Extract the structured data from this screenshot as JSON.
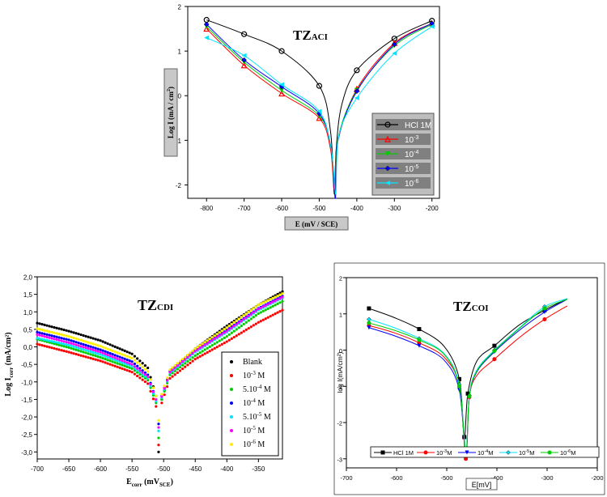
{
  "chart_data": [
    {
      "type": "line",
      "title": "TZ",
      "title_sub": "ACI",
      "xlabel": "E (mV / SCE)",
      "ylabel": "Log I (mA / cm",
      "ylabel_sup": "2",
      "ylabel_end": ")",
      "xlim": [
        -850,
        -180
      ],
      "ylim": [
        -2.3,
        2.0
      ],
      "xticks": [
        "-800",
        "-700",
        "-600",
        "-500",
        "-400",
        "-300",
        "-200"
      ],
      "xtick_values": [
        -800,
        -700,
        -600,
        -500,
        -400,
        -300,
        -200
      ],
      "yticks": [
        "-2",
        "-1",
        "0",
        "1",
        "2"
      ],
      "ytick_values": [
        -2,
        -1,
        0,
        1,
        2
      ],
      "legend_position": "bottom-right",
      "series": [
        {
          "name": "HCl 1M",
          "sup": "",
          "color": "#000000",
          "marker": "circle-open",
          "points": [
            [
              -800,
              1.7
            ],
            [
              -700,
              1.38
            ],
            [
              -600,
              1.0
            ],
            [
              -500,
              0.22
            ],
            [
              -470,
              -0.8
            ],
            [
              -460,
              -2.2
            ],
            [
              -455,
              -1.2
            ],
            [
              -440,
              -0.2
            ],
            [
              -400,
              0.57
            ],
            [
              -300,
              1.28
            ],
            [
              -200,
              1.68
            ]
          ]
        },
        {
          "name": "10",
          "sup": "-3",
          "color": "#ff0000",
          "marker": "triangle-open",
          "points": [
            [
              -800,
              1.5
            ],
            [
              -700,
              0.68
            ],
            [
              -600,
              0.05
            ],
            [
              -500,
              -0.5
            ],
            [
              -470,
              -1.2
            ],
            [
              -460,
              -2.1
            ],
            [
              -450,
              -1.0
            ],
            [
              -400,
              0.15
            ],
            [
              -300,
              1.18
            ],
            [
              -200,
              1.62
            ]
          ]
        },
        {
          "name": "10",
          "sup": "-4",
          "color": "#00cc00",
          "marker": "triangle-down",
          "points": [
            [
              -800,
              1.55
            ],
            [
              -700,
              0.75
            ],
            [
              -600,
              0.12
            ],
            [
              -500,
              -0.45
            ],
            [
              -470,
              -1.1
            ],
            [
              -458,
              -2.1
            ],
            [
              -450,
              -0.95
            ],
            [
              -400,
              0.12
            ],
            [
              -300,
              1.12
            ],
            [
              -200,
              1.6
            ]
          ]
        },
        {
          "name": "10",
          "sup": "-5",
          "color": "#0000ff",
          "marker": "diamond",
          "points": [
            [
              -800,
              1.6
            ],
            [
              -700,
              0.8
            ],
            [
              -600,
              0.2
            ],
            [
              -500,
              -0.4
            ],
            [
              -468,
              -1.2
            ],
            [
              -457,
              -2.3
            ],
            [
              -450,
              -1.0
            ],
            [
              -400,
              0.1
            ],
            [
              -300,
              1.15
            ],
            [
              -200,
              1.62
            ]
          ]
        },
        {
          "name": "10",
          "sup": "-6",
          "color": "#00e5ff",
          "marker": "triangle-left",
          "points": [
            [
              -800,
              1.3
            ],
            [
              -700,
              0.9
            ],
            [
              -600,
              0.25
            ],
            [
              -500,
              -0.35
            ],
            [
              -468,
              -1.2
            ],
            [
              -456,
              -2.2
            ],
            [
              -448,
              -0.9
            ],
            [
              -400,
              -0.05
            ],
            [
              -300,
              0.95
            ],
            [
              -200,
              1.55
            ]
          ]
        }
      ]
    },
    {
      "type": "scatter",
      "title": "TZ",
      "title_sub": "CDI",
      "xlabel": "E",
      "xlabel_sub": "corr",
      "xlabel_mid": " (mV",
      "xlabel_sub2": "SCE",
      "xlabel_end": ")",
      "ylabel": "Log I",
      "ylabel_sub": "corr",
      "ylabel_end": " (mA/cm²)",
      "xlim": [
        -700,
        -312
      ],
      "ylim": [
        -3.2,
        2.0
      ],
      "xticks": [
        "-700",
        "-650",
        "-600",
        "-550",
        "-500",
        "-450",
        "-400",
        "-350"
      ],
      "xtick_values": [
        -700,
        -650,
        -600,
        -550,
        -500,
        -450,
        -400,
        -350
      ],
      "yticks": [
        "-3,0",
        "-2,5",
        "-2,0",
        "-1,5",
        "-1,0",
        "-0,5",
        "0,0",
        "0,5",
        "1,0",
        "1,5",
        "2,0"
      ],
      "ytick_values": [
        -3.0,
        -2.5,
        -2.0,
        -1.5,
        -1.0,
        -0.5,
        0.0,
        0.5,
        1.0,
        1.5,
        2.0
      ],
      "legend_position": "bottom-right",
      "series": [
        {
          "name": "Blank",
          "color": "#000000",
          "points": [
            [
              -700,
              0.68
            ],
            [
              -650,
              0.45
            ],
            [
              -600,
              0.18
            ],
            [
              -550,
              -0.2
            ],
            [
              -525,
              -0.6
            ],
            [
              -512,
              -1.4
            ],
            [
              -508,
              -3.0
            ],
            [
              -503,
              -1.5
            ],
            [
              -490,
              -0.7
            ],
            [
              -450,
              -0.05
            ],
            [
              -400,
              0.6
            ],
            [
              -350,
              1.2
            ],
            [
              -312,
              1.58
            ]
          ]
        },
        {
          "name": "10",
          "sup": "-3",
          "unit": " M",
          "color": "#ff0000",
          "points": [
            [
              -700,
              0.08
            ],
            [
              -650,
              -0.15
            ],
            [
              -600,
              -0.4
            ],
            [
              -550,
              -0.72
            ],
            [
              -525,
              -1.05
            ],
            [
              -512,
              -1.7
            ],
            [
              -508,
              -2.8
            ],
            [
              -503,
              -1.6
            ],
            [
              -490,
              -0.9
            ],
            [
              -450,
              -0.35
            ],
            [
              -400,
              0.15
            ],
            [
              -350,
              0.7
            ],
            [
              -312,
              1.05
            ]
          ]
        },
        {
          "name": "5.10",
          "sup": "-4",
          "unit": " M",
          "color": "#00cc00",
          "points": [
            [
              -700,
              0.22
            ],
            [
              -650,
              -0.02
            ],
            [
              -600,
              -0.3
            ],
            [
              -550,
              -0.62
            ],
            [
              -525,
              -0.95
            ],
            [
              -512,
              -1.6
            ],
            [
              -508,
              -2.6
            ],
            [
              -503,
              -1.5
            ],
            [
              -490,
              -0.8
            ],
            [
              -450,
              -0.25
            ],
            [
              -400,
              0.3
            ],
            [
              -350,
              0.95
            ],
            [
              -312,
              1.3
            ]
          ]
        },
        {
          "name": "10",
          "sup": "-4",
          "unit": " M",
          "color": "#0000ff",
          "points": [
            [
              -700,
              0.42
            ],
            [
              -650,
              0.2
            ],
            [
              -600,
              -0.08
            ],
            [
              -550,
              -0.42
            ],
            [
              -525,
              -0.8
            ],
            [
              -512,
              -1.5
            ],
            [
              -508,
              -2.2
            ],
            [
              -503,
              -1.4
            ],
            [
              -490,
              -0.7
            ],
            [
              -450,
              -0.1
            ],
            [
              -400,
              0.48
            ],
            [
              -350,
              1.1
            ],
            [
              -312,
              1.45
            ]
          ]
        },
        {
          "name": "5.10",
          "sup": "-5",
          "unit": " M",
          "color": "#00e5ff",
          "points": [
            [
              -700,
              0.25
            ],
            [
              -650,
              0.05
            ],
            [
              -600,
              -0.22
            ],
            [
              -550,
              -0.55
            ],
            [
              -525,
              -0.9
            ],
            [
              -512,
              -1.55
            ],
            [
              -508,
              -2.4
            ],
            [
              -503,
              -1.45
            ],
            [
              -490,
              -0.75
            ],
            [
              -450,
              -0.15
            ],
            [
              -400,
              0.42
            ],
            [
              -350,
              1.05
            ],
            [
              -312,
              1.4
            ]
          ]
        },
        {
          "name": "10",
          "sup": "-5",
          "unit": " M",
          "color": "#ff00ff",
          "points": [
            [
              -700,
              0.35
            ],
            [
              -650,
              0.12
            ],
            [
              -600,
              -0.15
            ],
            [
              -550,
              -0.5
            ],
            [
              -525,
              -0.85
            ],
            [
              -512,
              -1.5
            ],
            [
              -508,
              -2.3
            ],
            [
              -503,
              -1.42
            ],
            [
              -490,
              -0.72
            ],
            [
              -450,
              -0.12
            ],
            [
              -400,
              0.45
            ],
            [
              -350,
              1.08
            ],
            [
              -312,
              1.42
            ]
          ]
        },
        {
          "name": "10",
          "sup": "-6",
          "unit": " M",
          "color": "#ffee00",
          "points": [
            [
              -700,
              0.52
            ],
            [
              -650,
              0.3
            ],
            [
              -600,
              0.02
            ],
            [
              -550,
              -0.32
            ],
            [
              -525,
              -0.7
            ],
            [
              -512,
              -1.4
            ],
            [
              -508,
              -2.1
            ],
            [
              -503,
              -1.35
            ],
            [
              -490,
              -0.65
            ],
            [
              -450,
              -0.05
            ],
            [
              -400,
              0.55
            ],
            [
              -350,
              1.2
            ],
            [
              -312,
              1.52
            ]
          ]
        }
      ]
    },
    {
      "type": "line",
      "title": "TZ",
      "title_sub": "COI",
      "xlabel": "E[mV]",
      "ylabel": "log I(mA/cm²)",
      "xlim": [
        -700,
        -200
      ],
      "ylim": [
        -3.25,
        2.0
      ],
      "xticks": [
        "-700",
        "-600",
        "-500",
        "-400",
        "-300",
        "-200"
      ],
      "xtick_values": [
        -700,
        -600,
        -500,
        -400,
        -300,
        -200
      ],
      "yticks": [
        "-3",
        "-2",
        "-1",
        "0",
        "1",
        "2"
      ],
      "ytick_values": [
        -3,
        -2,
        -1,
        0,
        1,
        2
      ],
      "legend_position": "bottom",
      "series": [
        {
          "name": "HCl 1M",
          "sup": "",
          "color": "#000000",
          "marker": "square",
          "points": [
            [
              -655,
              1.15
            ],
            [
              -605,
              0.9
            ],
            [
              -555,
              0.58
            ],
            [
              -505,
              0.1
            ],
            [
              -475,
              -0.8
            ],
            [
              -465,
              -2.4
            ],
            [
              -458,
              -1.2
            ],
            [
              -440,
              -0.3
            ],
            [
              -405,
              0.12
            ],
            [
              -355,
              0.7
            ],
            [
              -305,
              1.1
            ],
            [
              -260,
              1.42
            ]
          ]
        },
        {
          "name": "10",
          "sup": "-3",
          "unit": "M",
          "color": "#ff0000",
          "marker": "circle",
          "points": [
            [
              -655,
              0.68
            ],
            [
              -605,
              0.48
            ],
            [
              -555,
              0.2
            ],
            [
              -505,
              -0.2
            ],
            [
              -475,
              -1.0
            ],
            [
              -462,
              -3.0
            ],
            [
              -455,
              -1.3
            ],
            [
              -440,
              -0.7
            ],
            [
              -405,
              -0.25
            ],
            [
              -355,
              0.35
            ],
            [
              -305,
              0.85
            ],
            [
              -260,
              1.22
            ]
          ]
        },
        {
          "name": "10",
          "sup": "-4",
          "unit": "M",
          "color": "#0000ff",
          "marker": "triangle-down",
          "points": [
            [
              -655,
              0.62
            ],
            [
              -605,
              0.4
            ],
            [
              -555,
              0.12
            ],
            [
              -505,
              -0.28
            ],
            [
              -475,
              -1.1
            ],
            [
              -462,
              -2.9
            ],
            [
              -455,
              -1.3
            ],
            [
              -440,
              -0.6
            ],
            [
              -405,
              -0.05
            ],
            [
              -355,
              0.55
            ],
            [
              -305,
              1.05
            ],
            [
              -260,
              1.4
            ]
          ]
        },
        {
          "name": "10",
          "sup": "-5",
          "unit": "M",
          "color": "#00e5ff",
          "marker": "diamond",
          "points": [
            [
              -655,
              0.85
            ],
            [
              -605,
              0.62
            ],
            [
              -555,
              0.32
            ],
            [
              -505,
              -0.1
            ],
            [
              -475,
              -0.95
            ],
            [
              -462,
              -2.8
            ],
            [
              -455,
              -1.25
            ],
            [
              -440,
              -0.55
            ],
            [
              -405,
              0.0
            ],
            [
              -355,
              0.62
            ],
            [
              -305,
              1.2
            ],
            [
              -260,
              1.42
            ]
          ]
        },
        {
          "name": "10",
          "sup": "-6",
          "unit": "M",
          "color": "#00cc00",
          "marker": "circle",
          "points": [
            [
              -655,
              0.75
            ],
            [
              -605,
              0.55
            ],
            [
              -555,
              0.28
            ],
            [
              -505,
              -0.12
            ],
            [
              -475,
              -1.0
            ],
            [
              -462,
              -2.85
            ],
            [
              -455,
              -1.28
            ],
            [
              -440,
              -0.58
            ],
            [
              -405,
              -0.02
            ],
            [
              -355,
              0.6
            ],
            [
              -305,
              1.15
            ],
            [
              -260,
              1.4
            ]
          ]
        }
      ]
    }
  ]
}
